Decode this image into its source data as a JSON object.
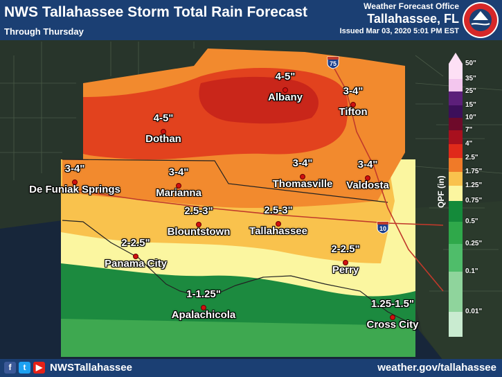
{
  "header": {
    "title": "NWS Tallahassee Storm Total Rain Forecast",
    "subtitle": "Through Thursday",
    "office": "Weather Forecast Office",
    "office_location": "Tallahassee, FL",
    "issued": "Issued Mar 03, 2020 5:01 PM EST"
  },
  "logo": {
    "text": "NATIONAL WEATHER SERVICE",
    "icon": "nws-logo-icon"
  },
  "footer": {
    "handle": "NWSTallahassee",
    "site": "weather.gov/tallahassee",
    "icons": [
      "facebook-icon",
      "twitter-icon",
      "youtube-icon"
    ]
  },
  "map": {
    "highways": [
      "75",
      "10"
    ],
    "cities": [
      {
        "name": "Dothan",
        "amount": "4-5\""
      },
      {
        "name": "Albany",
        "amount": "4-5\""
      },
      {
        "name": "Tifton",
        "amount": "3-4\""
      },
      {
        "name": "Marianna",
        "amount": "3-4\""
      },
      {
        "name": "De Funiak Springs",
        "amount": "3-4\""
      },
      {
        "name": "Thomasville",
        "amount": "3-4\""
      },
      {
        "name": "Valdosta",
        "amount": "3-4\""
      },
      {
        "name": "Blountstown",
        "amount": "2.5-3\""
      },
      {
        "name": "Tallahassee",
        "amount": "2.5-3\""
      },
      {
        "name": "Panama City",
        "amount": "2-2.5\""
      },
      {
        "name": "Perry",
        "amount": "2-2.5\""
      },
      {
        "name": "Apalachicola",
        "amount": "1-1.25\""
      },
      {
        "name": "Cross City",
        "amount": "1.25-1.5\""
      }
    ]
  },
  "legend": {
    "title": "QPF (in)",
    "levels": [
      {
        "label": "50\"",
        "color": "#fde0f5"
      },
      {
        "label": "35\"",
        "color": "#f3c6ee"
      },
      {
        "label": "25\"",
        "color": "#5c1f7a"
      },
      {
        "label": "15\"",
        "color": "#3c0f5a"
      },
      {
        "label": "10\"",
        "color": "#6e0a2a"
      },
      {
        "label": "7\"",
        "color": "#a8101e"
      },
      {
        "label": "4\"",
        "color": "#e02a1a"
      },
      {
        "label": "2.5\"",
        "color": "#f07a28"
      },
      {
        "label": "1.75\"",
        "color": "#f9c24d"
      },
      {
        "label": "1.25\"",
        "color": "#fbf6a0"
      },
      {
        "label": "0.75\"",
        "color": "#148a3a"
      },
      {
        "label": "0.5\"",
        "color": "#2fa84a"
      },
      {
        "label": "0.25\"",
        "color": "#4fbd6a"
      },
      {
        "label": "0.1\"",
        "color": "#8fd49c"
      },
      {
        "label": "0.01\"",
        "color": "#c9ebd0"
      }
    ]
  }
}
